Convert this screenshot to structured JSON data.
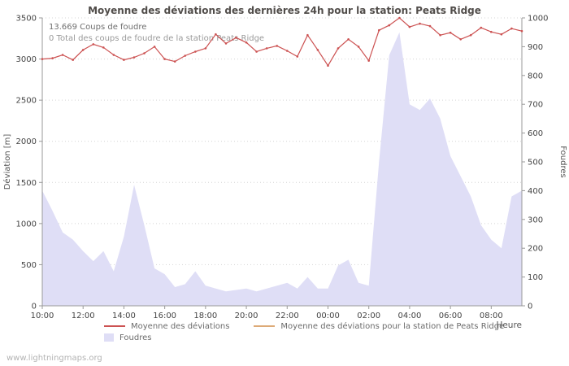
{
  "title": "Moyenne des déviations des dernières 24h pour la station: Peats Ridge",
  "annotations": {
    "line1": "13.669  Coups de foudre",
    "line2": "0 Total des coups de foudre de la station Peats Ridge"
  },
  "watermark": "www.lightningmaps.org",
  "colors": {
    "deviation_line": "#cc5252",
    "station_line": "#ddaa77",
    "strikes_area": "#dfdef6",
    "axis": "#999999",
    "grid": "#d4d4d4",
    "tick_text": "#444444",
    "axis_title": "#555555"
  },
  "legend": [
    {
      "label": "Moyenne des déviations",
      "type": "line",
      "color": "#cc5252"
    },
    {
      "label": "Moyenne des déviations pour la station de Peats Ridge",
      "type": "line",
      "color": "#ddaa77"
    },
    {
      "label": "Foudres",
      "type": "area",
      "color": "#dfdef6"
    }
  ],
  "chart_data": {
    "type": "line",
    "title": "Moyenne des déviations des dernières 24h pour la station: Peats Ridge",
    "x_axis_label": "Heure",
    "x_start_label": "10:00",
    "x_step_hours": 0.5,
    "x_tick_hours": [
      0,
      2,
      4,
      6,
      8,
      10,
      12,
      14,
      16,
      18,
      20,
      22
    ],
    "x_tick_labels": [
      "10:00",
      "12:00",
      "14:00",
      "16:00",
      "18:00",
      "20:00",
      "22:00",
      "00:00",
      "02:00",
      "04:00",
      "06:00",
      "08:00"
    ],
    "y_left": {
      "label": "Déviation [m]",
      "min": 0,
      "max": 3500,
      "tick_step": 500,
      "tick_labels": [
        "0",
        "500",
        "1000",
        "1500",
        "2000",
        "2500",
        "3000",
        "3500"
      ]
    },
    "y_right": {
      "label": "Foudres",
      "min": 0,
      "max": 1000,
      "tick_step": 100,
      "tick_labels": [
        "0",
        "100",
        "200",
        "300",
        "400",
        "500",
        "600",
        "700",
        "800",
        "900",
        "1000"
      ]
    },
    "grid": "horizontal-dotted",
    "legend_position": "bottom",
    "series": [
      {
        "name": "Moyenne des déviations",
        "kind": "line",
        "axis": "left",
        "color": "#cc5252",
        "values": [
          3000,
          3010,
          3050,
          2990,
          3110,
          3180,
          3140,
          3050,
          2990,
          3020,
          3070,
          3150,
          3000,
          2970,
          3040,
          3090,
          3130,
          3300,
          3190,
          3260,
          3200,
          3090,
          3130,
          3160,
          3100,
          3030,
          3290,
          3110,
          2920,
          3130,
          3240,
          3150,
          2980,
          3350,
          3410,
          3500,
          3390,
          3430,
          3400,
          3290,
          3320,
          3240,
          3290,
          3380,
          3330,
          3300,
          3370,
          3340
        ]
      },
      {
        "name": "Foudres",
        "kind": "area",
        "axis": "right",
        "color": "#dfdef6",
        "values": [
          400,
          330,
          255,
          230,
          190,
          155,
          190,
          120,
          240,
          420,
          280,
          130,
          110,
          65,
          75,
          120,
          70,
          60,
          50,
          55,
          60,
          50,
          60,
          70,
          80,
          60,
          100,
          60,
          60,
          140,
          160,
          80,
          70,
          500,
          870,
          950,
          700,
          680,
          720,
          650,
          520,
          450,
          380,
          280,
          230,
          200,
          380,
          400
        ]
      },
      {
        "name": "Moyenne des déviations pour la station de Peats Ridge",
        "kind": "line",
        "axis": "left",
        "color": "#ddaa77",
        "values": []
      }
    ]
  }
}
